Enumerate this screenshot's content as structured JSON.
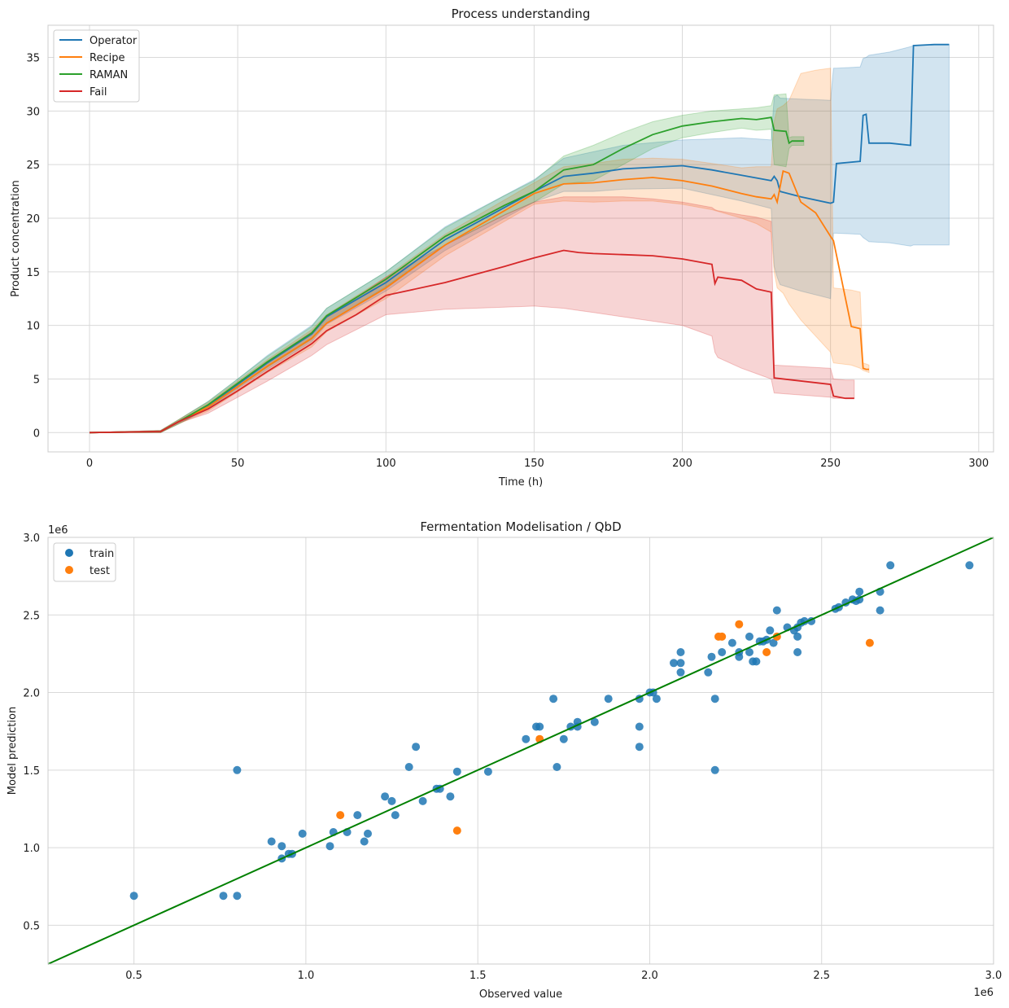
{
  "chart_data": [
    {
      "type": "line",
      "title": "Process understanding",
      "xlabel": "Time (h)",
      "ylabel": "Product concentration",
      "xlim": [
        -14,
        305
      ],
      "ylim": [
        -1.8,
        38
      ],
      "xticks": [
        0,
        50,
        100,
        150,
        200,
        250,
        300
      ],
      "yticks": [
        0,
        5,
        10,
        15,
        20,
        25,
        30,
        35
      ],
      "grid": true,
      "legend": "top-left",
      "series": [
        {
          "name": "Operator",
          "color": "#1f77b4",
          "x": [
            0,
            24,
            30,
            40,
            50,
            60,
            75,
            80,
            100,
            120,
            150,
            160,
            170,
            180,
            200,
            210,
            220,
            230,
            231,
            232,
            233,
            240,
            250,
            251,
            252,
            260,
            261,
            262,
            263,
            270,
            277,
            278,
            285,
            290
          ],
          "y": [
            0,
            0.1,
            1,
            2.5,
            4.5,
            6.5,
            9.2,
            10.8,
            14,
            18,
            22.5,
            23.9,
            24.2,
            24.6,
            24.9,
            24.5,
            24,
            23.5,
            23.9,
            23.5,
            22.5,
            22.0,
            21.4,
            21.5,
            25.1,
            25.3,
            29.6,
            29.7,
            27.0,
            27.0,
            26.8,
            36.1,
            36.2,
            36.2
          ],
          "band_upper": [
            0,
            0.2,
            1.2,
            2.9,
            5.0,
            7.2,
            10.0,
            11.6,
            15,
            19.2,
            23.6,
            25.6,
            26.2,
            26.8,
            27.3,
            27.4,
            27.5,
            27.3,
            31.3,
            31.5,
            31.2,
            31.1,
            31.0,
            34.0,
            34.0,
            34.1,
            34.9,
            35.0,
            35.2,
            35.5,
            36.0,
            36.1,
            36.2,
            36.2
          ],
          "band_lower": [
            0,
            0.0,
            0.8,
            2.2,
            4.1,
            5.9,
            8.5,
            10.1,
            13.2,
            17,
            21.5,
            22.5,
            22.5,
            22.7,
            22.8,
            22.2,
            21.6,
            20.9,
            15.5,
            14.5,
            13.8,
            13.2,
            12.5,
            18.6,
            18.6,
            18.5,
            18.2,
            18.0,
            17.8,
            17.7,
            17.4,
            17.5,
            17.5,
            17.5
          ]
        },
        {
          "name": "Recipe",
          "color": "#ff7f0e",
          "x": [
            0,
            24,
            30,
            40,
            50,
            60,
            75,
            80,
            100,
            120,
            150,
            160,
            170,
            180,
            190,
            200,
            210,
            220,
            225,
            230,
            231,
            232,
            234,
            236,
            240,
            245,
            250,
            251,
            257,
            260,
            261,
            262,
            263
          ],
          "y": [
            0,
            0.1,
            1,
            2.4,
            4.3,
            6.2,
            8.8,
            10.2,
            13.5,
            17.5,
            22.3,
            23.2,
            23.3,
            23.6,
            23.8,
            23.5,
            23.0,
            22.3,
            22.0,
            21.8,
            22.2,
            21.5,
            24.4,
            24.2,
            21.5,
            20.5,
            18.3,
            17.9,
            9.9,
            9.7,
            6.0,
            5.9,
            5.9
          ],
          "band_upper": [
            0,
            0.2,
            1.2,
            2.8,
            4.8,
            6.8,
            9.6,
            11,
            14.5,
            18.5,
            23.3,
            24.8,
            25.1,
            25.5,
            25.6,
            25.5,
            25.1,
            24.7,
            24.8,
            24.8,
            29.0,
            30.2,
            30.5,
            31.0,
            33.5,
            33.8,
            34.0,
            13.5,
            13.3,
            13.1,
            6.5,
            6.4,
            6.3
          ],
          "band_lower": [
            0,
            0.0,
            0.8,
            2.0,
            3.8,
            5.6,
            8.0,
            9.4,
            12.5,
            16.5,
            21.3,
            21.6,
            21.5,
            21.6,
            21.6,
            21.3,
            20.8,
            20.0,
            19.5,
            18.7,
            15.0,
            13.5,
            13.0,
            12.0,
            10.5,
            9.0,
            7.5,
            6.5,
            6.3,
            6.0,
            5.8,
            5.7,
            5.6
          ]
        },
        {
          "name": "RAMAN",
          "color": "#2ca02c",
          "x": [
            0,
            24,
            30,
            40,
            50,
            60,
            75,
            80,
            100,
            120,
            140,
            150,
            160,
            170,
            180,
            190,
            200,
            210,
            220,
            225,
            230,
            231,
            235,
            236,
            237,
            240,
            241
          ],
          "y": [
            0,
            0.1,
            1,
            2.6,
            4.6,
            6.6,
            9.3,
            10.9,
            14.3,
            18.3,
            21.2,
            22.5,
            24.5,
            25.0,
            26.5,
            27.8,
            28.6,
            29.0,
            29.3,
            29.2,
            29.4,
            28.2,
            28.1,
            27.0,
            27.2,
            27.2,
            27.2
          ],
          "band_upper": [
            0,
            0.2,
            1.2,
            2.9,
            5.0,
            7.1,
            9.9,
            11.6,
            15.0,
            19.1,
            22.1,
            23.5,
            25.8,
            26.8,
            28.0,
            29.0,
            29.6,
            30.0,
            30.2,
            30.3,
            30.5,
            31.5,
            31.6,
            27.5,
            27.6,
            27.6,
            27.6
          ],
          "band_lower": [
            0,
            0.0,
            0.8,
            2.3,
            4.2,
            6.1,
            8.7,
            10.2,
            13.6,
            17.5,
            20.3,
            21.5,
            23.2,
            23.5,
            25.0,
            26.5,
            27.5,
            28.0,
            28.4,
            28.2,
            28.3,
            25.0,
            24.8,
            26.5,
            26.8,
            26.8,
            26.8
          ]
        },
        {
          "name": "Fail",
          "color": "#d62728",
          "x": [
            0,
            24,
            30,
            40,
            50,
            60,
            75,
            80,
            90,
            100,
            120,
            140,
            150,
            160,
            165,
            170,
            180,
            190,
            200,
            210,
            211,
            212,
            220,
            225,
            230,
            231,
            250,
            251,
            255,
            258
          ],
          "y": [
            0,
            0.1,
            1,
            2.2,
            3.9,
            5.7,
            8.3,
            9.5,
            11,
            12.8,
            14.0,
            15.5,
            16.3,
            17.0,
            16.8,
            16.7,
            16.6,
            16.5,
            16.2,
            15.7,
            13.9,
            14.5,
            14.2,
            13.4,
            13.1,
            5.1,
            4.5,
            3.4,
            3.2,
            3.2
          ],
          "band_upper": [
            0,
            0.2,
            1.1,
            2.6,
            4.6,
            6.6,
            9.4,
            10.8,
            12.6,
            14.5,
            17.5,
            20.3,
            21.5,
            22.0,
            22.0,
            22.0,
            22.0,
            21.8,
            21.5,
            21.0,
            20.8,
            20.7,
            20.3,
            20.1,
            19.7,
            6.3,
            6.0,
            5.0,
            4.9,
            4.9
          ],
          "band_lower": [
            0,
            0.0,
            0.9,
            1.8,
            3.3,
            4.8,
            7.2,
            8.2,
            9.6,
            11.0,
            11.5,
            11.7,
            11.8,
            11.6,
            11.4,
            11.2,
            10.8,
            10.4,
            10.0,
            9.0,
            7.5,
            7.0,
            6.0,
            5.5,
            5.0,
            3.7,
            3.3,
            3.2,
            3.2,
            3.2
          ]
        }
      ]
    },
    {
      "type": "scatter",
      "title": "Fermentation Modelisation / QbD",
      "xlabel": "Observed value",
      "ylabel": "Model prediction",
      "x_offset_label": "1e6",
      "y_offset_label": "1e6",
      "xlim": [
        0.25,
        3.0
      ],
      "ylim": [
        0.25,
        3.0
      ],
      "xticks": [
        "0.5",
        "1.0",
        "1.5",
        "2.0",
        "2.5",
        "3.0"
      ],
      "yticks": [
        "0.5",
        "1.0",
        "1.5",
        "2.0",
        "2.5",
        "3.0"
      ],
      "grid": true,
      "legend": "top-left",
      "reference_line": {
        "color": "#008000",
        "x": [
          0.25,
          3.0
        ],
        "y": [
          0.25,
          3.0
        ]
      },
      "series": [
        {
          "name": "train",
          "color": "#1f77b4",
          "points": [
            [
              0.5,
              0.69
            ],
            [
              0.76,
              0.69
            ],
            [
              0.8,
              0.69
            ],
            [
              0.8,
              1.5
            ],
            [
              0.9,
              1.04
            ],
            [
              0.93,
              0.93
            ],
            [
              0.93,
              1.01
            ],
            [
              0.95,
              0.96
            ],
            [
              0.96,
              0.96
            ],
            [
              0.99,
              1.09
            ],
            [
              1.07,
              1.01
            ],
            [
              1.08,
              1.1
            ],
            [
              1.12,
              1.1
            ],
            [
              1.15,
              1.21
            ],
            [
              1.17,
              1.04
            ],
            [
              1.18,
              1.09
            ],
            [
              1.23,
              1.33
            ],
            [
              1.25,
              1.3
            ],
            [
              1.26,
              1.21
            ],
            [
              1.3,
              1.52
            ],
            [
              1.32,
              1.65
            ],
            [
              1.34,
              1.3
            ],
            [
              1.38,
              1.38
            ],
            [
              1.39,
              1.38
            ],
            [
              1.42,
              1.33
            ],
            [
              1.44,
              1.49
            ],
            [
              1.53,
              1.49
            ],
            [
              1.64,
              1.7
            ],
            [
              1.67,
              1.78
            ],
            [
              1.68,
              1.78
            ],
            [
              1.72,
              1.96
            ],
            [
              1.73,
              1.52
            ],
            [
              1.75,
              1.7
            ],
            [
              1.77,
              1.78
            ],
            [
              1.79,
              1.78
            ],
            [
              1.79,
              1.81
            ],
            [
              1.84,
              1.81
            ],
            [
              1.88,
              1.96
            ],
            [
              1.97,
              1.65
            ],
            [
              1.97,
              1.78
            ],
            [
              1.97,
              1.96
            ],
            [
              2.0,
              2.0
            ],
            [
              2.01,
              2.0
            ],
            [
              2.02,
              1.96
            ],
            [
              2.07,
              2.19
            ],
            [
              2.09,
              2.19
            ],
            [
              2.09,
              2.13
            ],
            [
              2.09,
              2.26
            ],
            [
              2.17,
              2.13
            ],
            [
              2.18,
              2.23
            ],
            [
              2.19,
              1.96
            ],
            [
              2.19,
              1.5
            ],
            [
              2.21,
              2.26
            ],
            [
              2.24,
              2.32
            ],
            [
              2.26,
              2.23
            ],
            [
              2.26,
              2.26
            ],
            [
              2.29,
              2.36
            ],
            [
              2.29,
              2.26
            ],
            [
              2.3,
              2.2
            ],
            [
              2.31,
              2.2
            ],
            [
              2.32,
              2.33
            ],
            [
              2.33,
              2.33
            ],
            [
              2.34,
              2.34
            ],
            [
              2.35,
              2.4
            ],
            [
              2.36,
              2.32
            ],
            [
              2.37,
              2.53
            ],
            [
              2.4,
              2.42
            ],
            [
              2.42,
              2.4
            ],
            [
              2.43,
              2.26
            ],
            [
              2.43,
              2.36
            ],
            [
              2.43,
              2.42
            ],
            [
              2.44,
              2.45
            ],
            [
              2.45,
              2.46
            ],
            [
              2.47,
              2.46
            ],
            [
              2.54,
              2.54
            ],
            [
              2.55,
              2.55
            ],
            [
              2.57,
              2.58
            ],
            [
              2.59,
              2.6
            ],
            [
              2.6,
              2.59
            ],
            [
              2.61,
              2.6
            ],
            [
              2.61,
              2.65
            ],
            [
              2.67,
              2.53
            ],
            [
              2.67,
              2.65
            ],
            [
              2.7,
              2.82
            ],
            [
              2.93,
              2.82
            ]
          ]
        },
        {
          "name": "test",
          "color": "#ff7f0e",
          "points": [
            [
              1.1,
              1.21
            ],
            [
              1.44,
              1.11
            ],
            [
              1.68,
              1.7
            ],
            [
              2.2,
              2.36
            ],
            [
              2.21,
              2.36
            ],
            [
              2.26,
              2.44
            ],
            [
              2.34,
              2.26
            ],
            [
              2.37,
              2.36
            ],
            [
              2.64,
              2.32
            ]
          ]
        }
      ]
    }
  ]
}
